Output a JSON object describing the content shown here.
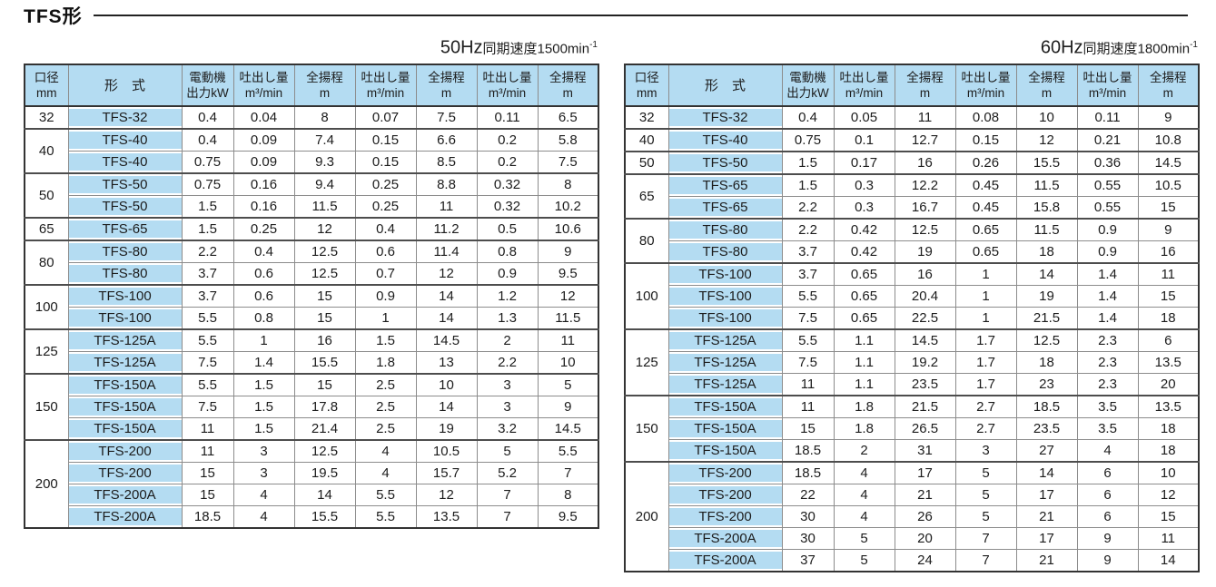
{
  "page_title": "TFS形",
  "colors": {
    "header_blue": "#b4dcf2",
    "border_dark": "#333333",
    "border_light": "#8c8c8c",
    "text": "#1c1c1c"
  },
  "header": {
    "bore_l1": "口径",
    "bore_l2": "mm",
    "model": "形　式",
    "motor_l1": "電動機",
    "motor_l2": "出力kW",
    "discharge_l1": "吐出し量",
    "discharge_l2": "m³/min",
    "head_l1": "全揚程",
    "head_l2": "m"
  },
  "tables": [
    {
      "caption_freq": "50Hz",
      "caption_label": "同期速度",
      "caption_speed": "1500min",
      "caption_sup": "-1",
      "groups": [
        {
          "bore": "32",
          "rows": [
            [
              "TFS-32",
              "0.4",
              "0.04",
              "8",
              "0.07",
              "7.5",
              "0.11",
              "6.5"
            ]
          ]
        },
        {
          "bore": "40",
          "rows": [
            [
              "TFS-40",
              "0.4",
              "0.09",
              "7.4",
              "0.15",
              "6.6",
              "0.2",
              "5.8"
            ],
            [
              "TFS-40",
              "0.75",
              "0.09",
              "9.3",
              "0.15",
              "8.5",
              "0.2",
              "7.5"
            ]
          ]
        },
        {
          "bore": "50",
          "rows": [
            [
              "TFS-50",
              "0.75",
              "0.16",
              "9.4",
              "0.25",
              "8.8",
              "0.32",
              "8"
            ],
            [
              "TFS-50",
              "1.5",
              "0.16",
              "11.5",
              "0.25",
              "11",
              "0.32",
              "10.2"
            ]
          ]
        },
        {
          "bore": "65",
          "rows": [
            [
              "TFS-65",
              "1.5",
              "0.25",
              "12",
              "0.4",
              "11.2",
              "0.5",
              "10.6"
            ]
          ]
        },
        {
          "bore": "80",
          "rows": [
            [
              "TFS-80",
              "2.2",
              "0.4",
              "12.5",
              "0.6",
              "11.4",
              "0.8",
              "9"
            ],
            [
              "TFS-80",
              "3.7",
              "0.6",
              "12.5",
              "0.7",
              "12",
              "0.9",
              "9.5"
            ]
          ]
        },
        {
          "bore": "100",
          "rows": [
            [
              "TFS-100",
              "3.7",
              "0.6",
              "15",
              "0.9",
              "14",
              "1.2",
              "12"
            ],
            [
              "TFS-100",
              "5.5",
              "0.8",
              "15",
              "1",
              "14",
              "1.3",
              "11.5"
            ]
          ]
        },
        {
          "bore": "125",
          "rows": [
            [
              "TFS-125A",
              "5.5",
              "1",
              "16",
              "1.5",
              "14.5",
              "2",
              "11"
            ],
            [
              "TFS-125A",
              "7.5",
              "1.4",
              "15.5",
              "1.8",
              "13",
              "2.2",
              "10"
            ]
          ]
        },
        {
          "bore": "150",
          "rows": [
            [
              "TFS-150A",
              "5.5",
              "1.5",
              "15",
              "2.5",
              "10",
              "3",
              "5"
            ],
            [
              "TFS-150A",
              "7.5",
              "1.5",
              "17.8",
              "2.5",
              "14",
              "3",
              "9"
            ],
            [
              "TFS-150A",
              "11",
              "1.5",
              "21.4",
              "2.5",
              "19",
              "3.2",
              "14.5"
            ]
          ]
        },
        {
          "bore": "200",
          "rows": [
            [
              "TFS-200",
              "11",
              "3",
              "12.5",
              "4",
              "10.5",
              "5",
              "5.5"
            ],
            [
              "TFS-200",
              "15",
              "3",
              "19.5",
              "4",
              "15.7",
              "5.2",
              "7"
            ],
            [
              "TFS-200A",
              "15",
              "4",
              "14",
              "5.5",
              "12",
              "7",
              "8"
            ],
            [
              "TFS-200A",
              "18.5",
              "4",
              "15.5",
              "5.5",
              "13.5",
              "7",
              "9.5"
            ]
          ]
        }
      ]
    },
    {
      "caption_freq": "60Hz",
      "caption_label": "同期速度",
      "caption_speed": "1800min",
      "caption_sup": "-1",
      "groups": [
        {
          "bore": "32",
          "rows": [
            [
              "TFS-32",
              "0.4",
              "0.05",
              "11",
              "0.08",
              "10",
              "0.11",
              "9"
            ]
          ]
        },
        {
          "bore": "40",
          "rows": [
            [
              "TFS-40",
              "0.75",
              "0.1",
              "12.7",
              "0.15",
              "12",
              "0.21",
              "10.8"
            ]
          ]
        },
        {
          "bore": "50",
          "rows": [
            [
              "TFS-50",
              "1.5",
              "0.17",
              "16",
              "0.26",
              "15.5",
              "0.36",
              "14.5"
            ]
          ]
        },
        {
          "bore": "65",
          "rows": [
            [
              "TFS-65",
              "1.5",
              "0.3",
              "12.2",
              "0.45",
              "11.5",
              "0.55",
              "10.5"
            ],
            [
              "TFS-65",
              "2.2",
              "0.3",
              "16.7",
              "0.45",
              "15.8",
              "0.55",
              "15"
            ]
          ]
        },
        {
          "bore": "80",
          "rows": [
            [
              "TFS-80",
              "2.2",
              "0.42",
              "12.5",
              "0.65",
              "11.5",
              "0.9",
              "9"
            ],
            [
              "TFS-80",
              "3.7",
              "0.42",
              "19",
              "0.65",
              "18",
              "0.9",
              "16"
            ]
          ]
        },
        {
          "bore": "100",
          "rows": [
            [
              "TFS-100",
              "3.7",
              "0.65",
              "16",
              "1",
              "14",
              "1.4",
              "11"
            ],
            [
              "TFS-100",
              "5.5",
              "0.65",
              "20.4",
              "1",
              "19",
              "1.4",
              "15"
            ],
            [
              "TFS-100",
              "7.5",
              "0.65",
              "22.5",
              "1",
              "21.5",
              "1.4",
              "18"
            ]
          ]
        },
        {
          "bore": "125",
          "rows": [
            [
              "TFS-125A",
              "5.5",
              "1.1",
              "14.5",
              "1.7",
              "12.5",
              "2.3",
              "6"
            ],
            [
              "TFS-125A",
              "7.5",
              "1.1",
              "19.2",
              "1.7",
              "18",
              "2.3",
              "13.5"
            ],
            [
              "TFS-125A",
              "11",
              "1.1",
              "23.5",
              "1.7",
              "23",
              "2.3",
              "20"
            ]
          ]
        },
        {
          "bore": "150",
          "rows": [
            [
              "TFS-150A",
              "11",
              "1.8",
              "21.5",
              "2.7",
              "18.5",
              "3.5",
              "13.5"
            ],
            [
              "TFS-150A",
              "15",
              "1.8",
              "26.5",
              "2.7",
              "23.5",
              "3.5",
              "18"
            ],
            [
              "TFS-150A",
              "18.5",
              "2",
              "31",
              "3",
              "27",
              "4",
              "18"
            ]
          ]
        },
        {
          "bore": "200",
          "rows": [
            [
              "TFS-200",
              "18.5",
              "4",
              "17",
              "5",
              "14",
              "6",
              "10"
            ],
            [
              "TFS-200",
              "22",
              "4",
              "21",
              "5",
              "17",
              "6",
              "12"
            ],
            [
              "TFS-200",
              "30",
              "4",
              "26",
              "5",
              "21",
              "6",
              "15"
            ],
            [
              "TFS-200A",
              "30",
              "5",
              "20",
              "7",
              "17",
              "9",
              "11"
            ],
            [
              "TFS-200A",
              "37",
              "5",
              "24",
              "7",
              "21",
              "9",
              "14"
            ]
          ]
        }
      ]
    }
  ]
}
